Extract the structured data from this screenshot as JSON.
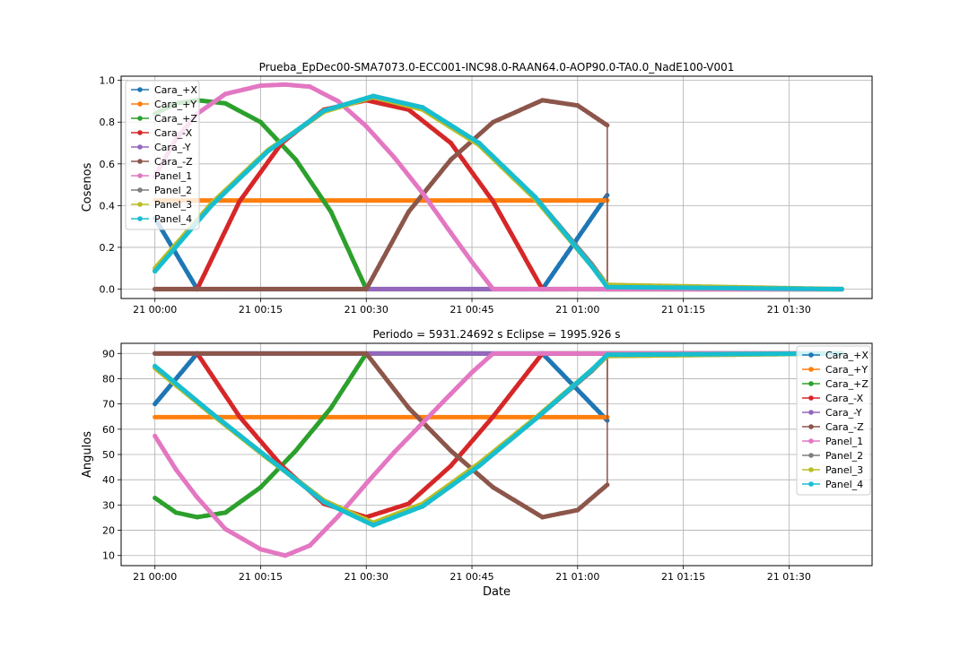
{
  "chart_data": [
    {
      "type": "line",
      "title": "Prueba_EpDec00-SMA7073.0-ECC001-INC98.0-RAAN64.0-AOP90.0-TA0.0_NadE100-V001",
      "xlabel": "",
      "ylabel": "Cosenos",
      "x_unit": "minutes after 21 00:00",
      "xlim": [
        -4.8,
        101.8
      ],
      "ylim": [
        -0.045,
        1.02
      ],
      "xticks": [
        0,
        15,
        30,
        45,
        60,
        75,
        90
      ],
      "xtick_labels": [
        "21 00:00",
        "21 00:15",
        "21 00:30",
        "21 00:45",
        "21 01:00",
        "21 01:15",
        "21 01:30"
      ],
      "yticks": [
        0.0,
        0.2,
        0.4,
        0.6,
        0.8,
        1.0
      ],
      "ytick_labels": [
        "0.0",
        "0.2",
        "0.4",
        "0.6",
        "0.8",
        "1.0"
      ],
      "grid": true,
      "legend": "upper-left",
      "series": [
        {
          "name": "Cara_+X",
          "color": "#1f77b4",
          "x": [
            0,
            6,
            55,
            64.2,
            64.21,
            97.5
          ],
          "y": [
            0.34,
            0.0,
            0.0,
            0.45,
            0.0,
            0.0
          ]
        },
        {
          "name": "Cara_+Y",
          "color": "#ff7f0e",
          "x": [
            0,
            64.2,
            64.21,
            97.5
          ],
          "y": [
            0.425,
            0.425,
            0.0,
            0.0
          ]
        },
        {
          "name": "Cara_+Z",
          "color": "#2ca02c",
          "x": [
            0,
            3,
            6,
            10,
            15,
            20,
            25,
            30,
            30.01,
            97.5
          ],
          "y": [
            0.84,
            0.89,
            0.905,
            0.89,
            0.8,
            0.62,
            0.37,
            0.0,
            0.0,
            0.0
          ]
        },
        {
          "name": "Cara_-X",
          "color": "#d62728",
          "x": [
            0,
            6,
            12,
            18,
            24,
            30,
            36,
            42,
            48,
            55,
            64.2,
            97.5
          ],
          "y": [
            0.0,
            0.0,
            0.42,
            0.7,
            0.86,
            0.905,
            0.86,
            0.7,
            0.42,
            0.0,
            0.0,
            0.0
          ]
        },
        {
          "name": "Cara_-Y",
          "color": "#9467bd",
          "x": [
            0,
            30,
            48,
            64.2,
            97.5
          ],
          "y": [
            0.0,
            0.0,
            0.0,
            0.0,
            0.0
          ]
        },
        {
          "name": "Cara_-Z",
          "color": "#8c564b",
          "x": [
            0,
            30,
            36,
            42,
            48,
            55,
            60,
            64.2,
            64.21,
            97.5
          ],
          "y": [
            0.0,
            0.0,
            0.37,
            0.62,
            0.8,
            0.905,
            0.88,
            0.785,
            0.0,
            0.0
          ]
        },
        {
          "name": "Panel_1",
          "color": "#e377c2",
          "x": [
            0,
            3,
            6,
            10,
            15,
            18.5,
            22,
            26,
            30,
            34,
            38,
            42,
            45,
            48,
            64.2,
            97.5
          ],
          "y": [
            0.54,
            0.72,
            0.84,
            0.935,
            0.975,
            0.98,
            0.97,
            0.9,
            0.78,
            0.63,
            0.46,
            0.27,
            0.13,
            0.0,
            0.0,
            0.0
          ]
        },
        {
          "name": "Panel_2",
          "color": "#7f7f7f",
          "x": [
            0,
            8,
            16,
            24,
            31,
            38,
            46,
            54,
            62,
            64.2,
            97.5
          ],
          "y": [
            0.09,
            0.4,
            0.66,
            0.85,
            0.925,
            0.87,
            0.7,
            0.44,
            0.12,
            0.02,
            0.0
          ]
        },
        {
          "name": "Panel_3",
          "color": "#bcbd22",
          "x": [
            0,
            8,
            16,
            24,
            31,
            38,
            46,
            54,
            62,
            64.2,
            97.5
          ],
          "y": [
            0.1,
            0.41,
            0.665,
            0.85,
            0.92,
            0.86,
            0.69,
            0.43,
            0.11,
            0.02,
            0.0
          ]
        },
        {
          "name": "Panel_4",
          "color": "#17becf",
          "x": [
            0,
            8,
            16,
            24,
            31,
            38,
            46,
            54,
            62,
            64.2,
            97.5
          ],
          "y": [
            0.085,
            0.4,
            0.66,
            0.855,
            0.925,
            0.87,
            0.7,
            0.44,
            0.11,
            0.01,
            0.0
          ]
        }
      ]
    },
    {
      "type": "line",
      "title": "Periodo = 5931.24692 s    Eclipse = 1995.926 s",
      "xlabel": "Date",
      "ylabel": "Angulos",
      "x_unit": "minutes after 21 00:00",
      "xlim": [
        -4.8,
        101.8
      ],
      "ylim": [
        6.0,
        94.0
      ],
      "xticks": [
        0,
        15,
        30,
        45,
        60,
        75,
        90
      ],
      "xtick_labels": [
        "21 00:00",
        "21 00:15",
        "21 00:30",
        "21 00:45",
        "21 01:00",
        "21 01:15",
        "21 01:30"
      ],
      "yticks": [
        10,
        20,
        30,
        40,
        50,
        60,
        70,
        80,
        90
      ],
      "ytick_labels": [
        "10",
        "20",
        "30",
        "40",
        "50",
        "60",
        "70",
        "80",
        "90"
      ],
      "grid": true,
      "legend": "upper-right",
      "series": [
        {
          "name": "Cara_+X",
          "color": "#1f77b4",
          "x": [
            0,
            6,
            55,
            64.2,
            64.21,
            97.5
          ],
          "y": [
            70,
            90,
            90,
            63.5,
            90,
            90
          ]
        },
        {
          "name": "Cara_+Y",
          "color": "#ff7f0e",
          "x": [
            0,
            64.2,
            64.21,
            97.5
          ],
          "y": [
            64.8,
            64.8,
            90,
            90
          ]
        },
        {
          "name": "Cara_+Z",
          "color": "#2ca02c",
          "x": [
            0,
            3,
            6,
            10,
            15,
            20,
            25,
            30,
            30.01,
            97.5
          ],
          "y": [
            32.8,
            27,
            25.2,
            27,
            37,
            51.5,
            68.5,
            90,
            90,
            90
          ]
        },
        {
          "name": "Cara_-X",
          "color": "#d62728",
          "x": [
            0,
            6,
            12,
            18,
            24,
            30,
            36,
            42,
            48,
            55,
            64.2,
            97.5
          ],
          "y": [
            90,
            90,
            65,
            45.5,
            30.5,
            25.2,
            30.5,
            45.5,
            65,
            90,
            90,
            90
          ]
        },
        {
          "name": "Cara_-Y",
          "color": "#9467bd",
          "x": [
            0,
            30,
            48,
            64.2,
            97.5
          ],
          "y": [
            90,
            90,
            90,
            90,
            90
          ]
        },
        {
          "name": "Cara_-Z",
          "color": "#8c564b",
          "x": [
            0,
            30,
            36,
            42,
            48,
            55,
            60,
            64.2,
            64.21,
            97.5
          ],
          "y": [
            90,
            90,
            68.5,
            51.5,
            37,
            25.2,
            28,
            38,
            90,
            90
          ]
        },
        {
          "name": "Panel_1",
          "color": "#e377c2",
          "x": [
            0,
            3,
            6,
            10,
            15,
            18.5,
            22,
            26,
            30,
            34,
            38,
            42,
            45,
            48,
            64.2,
            97.5
          ],
          "y": [
            57.3,
            44,
            33,
            20.5,
            12.5,
            10,
            14,
            25.5,
            38.5,
            51,
            62.5,
            74,
            82.5,
            90,
            90,
            90
          ]
        },
        {
          "name": "Panel_2",
          "color": "#7f7f7f",
          "x": [
            0,
            8,
            16,
            24,
            31,
            38,
            46,
            54,
            62,
            64.2,
            97.5
          ],
          "y": [
            84.8,
            66.5,
            48.8,
            31.8,
            22.5,
            29.5,
            45.5,
            64,
            83,
            89,
            90
          ]
        },
        {
          "name": "Panel_3",
          "color": "#bcbd22",
          "x": [
            0,
            8,
            16,
            24,
            31,
            38,
            46,
            54,
            62,
            64.2,
            97.5
          ],
          "y": [
            84.2,
            66,
            48.4,
            31.8,
            23,
            30.5,
            46.5,
            64.5,
            83.5,
            89,
            90
          ]
        },
        {
          "name": "Panel_4",
          "color": "#17becf",
          "x": [
            0,
            8,
            16,
            24,
            31,
            38,
            46,
            54,
            62,
            64.2,
            97.5
          ],
          "y": [
            85,
            66.5,
            48.8,
            31.2,
            22,
            29.5,
            45.5,
            64,
            83.5,
            89.5,
            90
          ]
        }
      ]
    }
  ]
}
